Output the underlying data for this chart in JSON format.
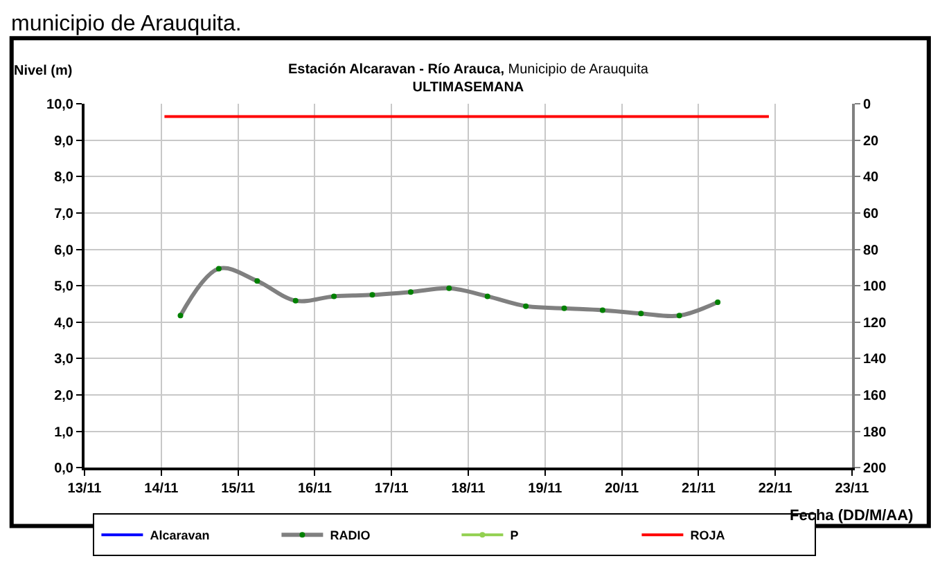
{
  "chart_data": {
    "type": "line",
    "title": "Estación Alcaravan - Río Arauca, Municipio de Arauquita",
    "subtitle": "ULTIMASEMANA",
    "ylabel": "Nivel (m)",
    "xlabel": "Fecha (DD/M/AA)",
    "annotations": [
      "municipio de Arauquita."
    ],
    "series": [
      {
        "name": "Alcaravan",
        "color": "#0000ff"
      },
      {
        "name": "RADIO",
        "color": "#808080",
        "marker": "circle",
        "colors": [
          "#008000",
          "#008000",
          "#008000",
          "#008000",
          "#008000",
          "#008000",
          "#008000",
          "#008000",
          "#008000",
          "#008000",
          "#008000",
          "#008000",
          "#008000",
          "#008000",
          "#008000"
        ],
        "x": [
          "--11-14T06:00",
          "--11-14T18:00",
          "--11-15T06:00",
          "--11-15T18:00",
          "--11-16T06:00",
          "--11-16T18:00",
          "--11-17T06:00",
          "--11-17T18:00",
          "--11-18T06:00",
          "--11-18T18:00",
          "--11-19T06:00",
          "--11-19T18:00",
          "--11-20T06:00",
          "--11-20T18:00",
          "--11-21T06:00"
        ],
        "values": [
          4.18,
          5.47,
          5.13,
          4.59,
          4.71,
          4.75,
          4.83,
          4.93,
          4.71,
          4.44,
          4.38,
          4.33,
          4.24,
          4.18,
          4.55
        ]
      },
      {
        "name": "P",
        "color": "#92d050",
        "marker": "circle"
      },
      {
        "name": "ROJA",
        "color": "#ff0000",
        "x": [
          "--11-14T01:00",
          "--11-21T22:00"
        ],
        "values": [
          9.65,
          9.65
        ]
      }
    ],
    "xlim": [
      "--11-13",
      "--11-23"
    ],
    "xticks": [
      {
        "value": "--11-13",
        "label": "13/11"
      },
      {
        "value": "--11-14",
        "label": "14/11"
      },
      {
        "value": "--11-15",
        "label": "15/11"
      },
      {
        "value": "--11-16",
        "label": "16/11"
      },
      {
        "value": "--11-17",
        "label": "17/11"
      },
      {
        "value": "--11-18",
        "label": "18/11"
      },
      {
        "value": "--11-19",
        "label": "19/11"
      },
      {
        "value": "--11-20",
        "label": "20/11"
      },
      {
        "value": "--11-21",
        "label": "21/11"
      },
      {
        "value": "--11-22",
        "label": "22/11"
      },
      {
        "value": "--11-23",
        "label": "23/11"
      }
    ],
    "ylim": [
      0,
      10
    ],
    "yticks": [
      {
        "value": 0,
        "label": "0,0"
      },
      {
        "value": 1,
        "label": "1,0"
      },
      {
        "value": 2,
        "label": "2,0"
      },
      {
        "value": 3,
        "label": "3,0"
      },
      {
        "value": 4,
        "label": "4,0"
      },
      {
        "value": 5,
        "label": "5,0"
      },
      {
        "value": 6,
        "label": "6,0"
      },
      {
        "value": 7,
        "label": "7,0"
      },
      {
        "value": 8,
        "label": "8,0"
      },
      {
        "value": 9,
        "label": "9,0"
      },
      {
        "value": 10,
        "label": "10,0"
      }
    ],
    "y2lim": [
      200,
      0
    ],
    "y2ticks": [
      0,
      20,
      40,
      60,
      80,
      100,
      120,
      140,
      160,
      180,
      200
    ],
    "grid": true,
    "legend": "bottom"
  }
}
